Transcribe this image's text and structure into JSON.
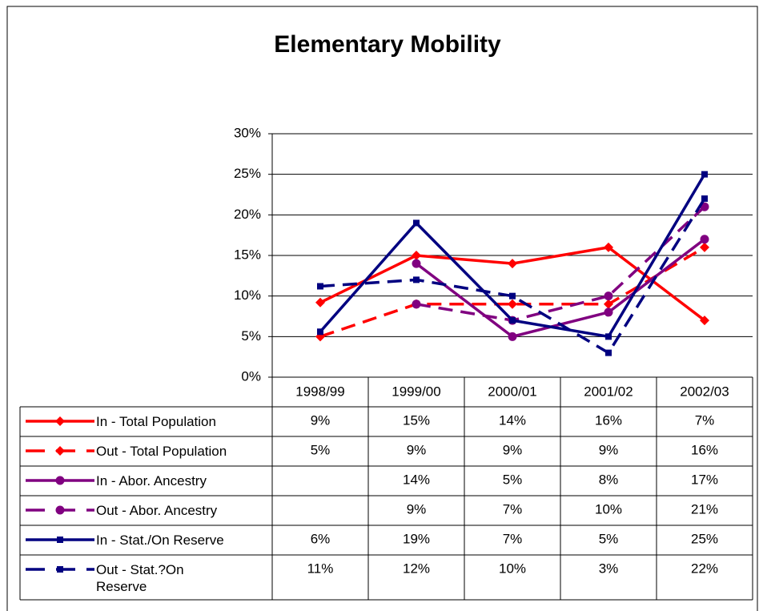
{
  "chart_data": {
    "type": "line",
    "title": "Elementary Mobility",
    "categories": [
      "1998/99",
      "1999/00",
      "2000/01",
      "2001/02",
      "2002/03"
    ],
    "ylim": [
      0,
      30
    ],
    "yticks": [
      {
        "value": 0,
        "label": "0%"
      },
      {
        "value": 5,
        "label": "5%"
      },
      {
        "value": 10,
        "label": "10%"
      },
      {
        "value": 15,
        "label": "15%"
      },
      {
        "value": 20,
        "label": "20%"
      },
      {
        "value": 25,
        "label": "25%"
      },
      {
        "value": 30,
        "label": "30%"
      }
    ],
    "grid": true,
    "series": [
      {
        "name": "In - Total Population",
        "color": "#ff0000",
        "dash": false,
        "marker": "diamond",
        "values": [
          9.2,
          15,
          14,
          16,
          7
        ],
        "value_labels": [
          "9%",
          "15%",
          "14%",
          "16%",
          "7%"
        ]
      },
      {
        "name": "Out - Total Population",
        "color": "#ff0000",
        "dash": true,
        "marker": "diamond",
        "values": [
          5,
          9,
          9,
          9,
          16
        ],
        "value_labels": [
          "5%",
          "9%",
          "9%",
          "9%",
          "16%"
        ]
      },
      {
        "name": "In - Abor. Ancestry",
        "color": "#800080",
        "dash": false,
        "marker": "circle",
        "values": [
          null,
          14,
          5,
          8,
          17
        ],
        "value_labels": [
          null,
          "14%",
          "5%",
          "8%",
          "17%"
        ]
      },
      {
        "name": "Out - Abor. Ancestry",
        "color": "#800080",
        "dash": true,
        "marker": "circle",
        "values": [
          null,
          9,
          7,
          10,
          21
        ],
        "value_labels": [
          null,
          "9%",
          "7%",
          "10%",
          "21%"
        ]
      },
      {
        "name": "In - Stat./On Reserve",
        "color": "#000080",
        "dash": false,
        "marker": "square",
        "values": [
          5.6,
          19,
          7,
          5,
          25
        ],
        "value_labels": [
          "6%",
          "19%",
          "7%",
          "5%",
          "25%"
        ]
      },
      {
        "name": "Out - Stat.?On Reserve",
        "color": "#000080",
        "dash": true,
        "marker": "square",
        "values": [
          11.2,
          12,
          10,
          3,
          22
        ],
        "value_labels": [
          "11%",
          "12%",
          "10%",
          "3%",
          "22%"
        ]
      }
    ]
  }
}
